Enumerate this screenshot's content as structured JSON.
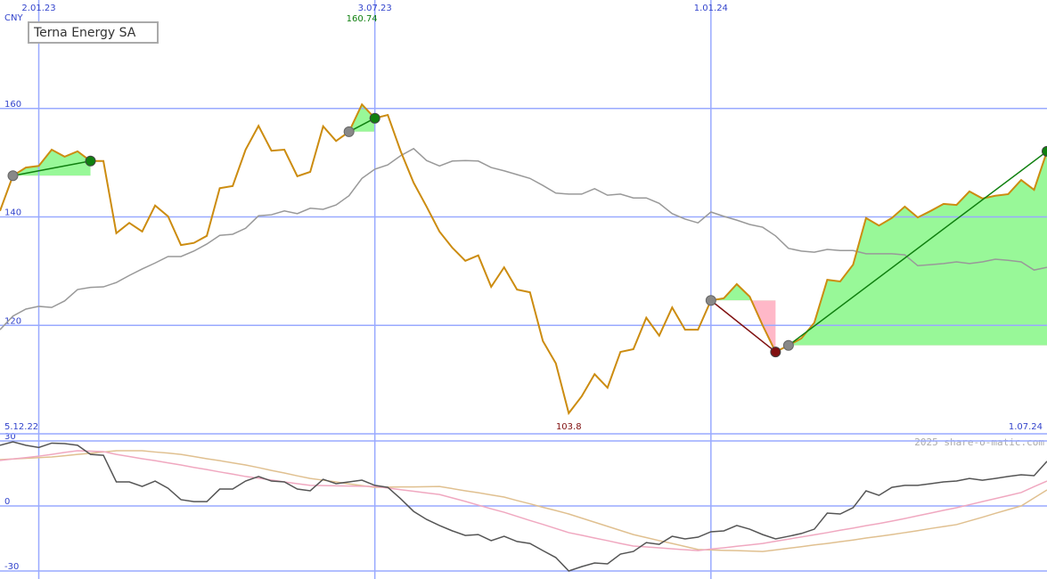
{
  "chart_data": [
    {
      "type": "line",
      "unit": "CNY",
      "xlim": [
        0,
        81
      ],
      "xticks": [
        {
          "value": 0,
          "label": "5.12.22"
        },
        {
          "value": 3,
          "label": "2.01.23"
        },
        {
          "value": 29,
          "label": "3.07.23"
        },
        {
          "value": 55,
          "label": "1.01.24"
        },
        {
          "value": 81,
          "label": "1.07.24"
        }
      ],
      "ylim": [
        100,
        180
      ],
      "yticks": [
        120,
        140,
        160
      ],
      "grid": true,
      "series": [
        {
          "name": "Terna Energy SA",
          "color": "#cc8c10",
          "values": [
            141.1,
            147.6,
            149.1,
            149.4,
            152.4,
            151.1,
            152.1,
            150.3,
            150.3,
            137.0,
            138.9,
            137.3,
            142.1,
            140.1,
            134.8,
            135.2,
            136.5,
            145.3,
            145.7,
            152.4,
            156.8,
            152.2,
            152.4,
            147.5,
            148.3,
            156.7,
            154.0,
            155.7,
            160.74,
            158.2,
            158.8,
            152.1,
            146.3,
            141.9,
            137.3,
            134.3,
            131.9,
            132.9,
            127.1,
            130.7,
            126.6,
            126.1,
            117.1,
            113.0,
            103.8,
            106.9,
            111.0,
            108.5,
            115.1,
            115.6,
            121.4,
            118.1,
            123.3,
            119.2,
            119.2,
            124.6,
            125.0,
            127.6,
            125.3,
            120.0,
            115.1,
            116.3,
            117.6,
            120.5,
            128.4,
            128.1,
            131.2,
            139.8,
            138.4,
            139.8,
            141.9,
            139.9,
            141.1,
            142.4,
            142.2,
            144.7,
            143.4,
            143.9,
            144.2,
            146.8,
            145.0,
            152.1
          ]
        },
        {
          "color": "#999999",
          "values": [
            119.2,
            121.7,
            123.0,
            123.5,
            123.3,
            124.5,
            126.6,
            127.0,
            127.1,
            127.9,
            129.2,
            130.4,
            131.5,
            132.7,
            132.7,
            133.7,
            135.0,
            136.6,
            136.8,
            137.9,
            140.2,
            140.4,
            141.1,
            140.6,
            141.6,
            141.4,
            142.2,
            143.9,
            147.1,
            148.8,
            149.6,
            151.3,
            152.6,
            150.4,
            149.4,
            150.3,
            150.4,
            150.3,
            149.1,
            148.5,
            147.8,
            147.1,
            145.8,
            144.4,
            144.2,
            144.2,
            145.2,
            144.0,
            144.2,
            143.5,
            143.5,
            142.5,
            140.6,
            139.6,
            138.9,
            140.9,
            140.1,
            139.4,
            138.6,
            138.1,
            136.5,
            134.2,
            133.7,
            133.5,
            134.0,
            133.8,
            133.8,
            133.2,
            133.2,
            133.2,
            133.0,
            131.0,
            131.2,
            131.4,
            131.7,
            131.4,
            131.7,
            132.2,
            132.0,
            131.7,
            130.2,
            130.7
          ]
        }
      ],
      "signals": [
        {
          "from": 1,
          "to": 7,
          "color": "#108010"
        },
        {
          "from": 27,
          "to": 29,
          "color": "#108010"
        },
        {
          "from": 55,
          "to": 60,
          "color": "#801010"
        },
        {
          "from": 61,
          "to": 81,
          "color": "#108010"
        }
      ],
      "annotations": [
        {
          "x": 28,
          "value": 160.74,
          "color": "#108010"
        },
        {
          "x": 44,
          "value": 103.8,
          "color": "#801010"
        }
      ],
      "watermark": "2025 share-o-matic.com"
    },
    {
      "type": "line",
      "xlim": [
        0,
        81
      ],
      "ylim": [
        -33.7,
        33.3
      ],
      "yticks": [
        -30,
        0,
        30
      ],
      "grid": true,
      "series": [
        {
          "color": "#555555",
          "values": [
            28,
            29.6,
            28,
            27,
            29,
            28.8,
            28,
            23.8,
            23.4,
            11.1,
            11.1,
            9,
            11.5,
            8.2,
            2.9,
            2,
            2,
            7.8,
            7.8,
            11.5,
            13.6,
            11.5,
            11.1,
            7.8,
            7,
            12.3,
            10.3,
            11.1,
            11.9,
            9.5,
            8.6,
            3.3,
            -2.5,
            -6.2,
            -9,
            -11.5,
            -13.6,
            -13.2,
            -16,
            -14,
            -16.4,
            -17.3,
            -20.6,
            -23.8,
            -30,
            -28,
            -26.3,
            -26.7,
            -22.2,
            -21,
            -16.9,
            -17.7,
            -14,
            -15.2,
            -14.4,
            -11.9,
            -11.5,
            -9,
            -10.7,
            -13.2,
            -15.2,
            -14,
            -12.7,
            -10.7,
            -3.3,
            -3.7,
            -0.8,
            7,
            4.9,
            8.6,
            9.5,
            9.5,
            10.3,
            11.1,
            11.5,
            12.7,
            11.9,
            12.7,
            13.6,
            14.4,
            14,
            20.6
          ]
        },
        {
          "color": "#f0a8c0",
          "values": [
            21.0,
            21.7,
            22.3,
            23.0,
            23.8,
            24.7,
            25.5,
            25.3,
            25.1,
            23.8,
            22.8,
            21.8,
            20.9,
            19.9,
            18.9,
            17.8,
            16.8,
            15.7,
            14.7,
            13.6,
            12.8,
            12.0,
            11.1,
            10.3,
            9.5,
            9.4,
            9.3,
            9.2,
            9.1,
            9.0,
            8.3,
            7.5,
            6.8,
            6.0,
            5.3,
            3.7,
            2.1,
            0.4,
            -1.3,
            -2.9,
            -4.8,
            -6.7,
            -8.5,
            -10.4,
            -12.3,
            -13.5,
            -14.8,
            -16.0,
            -17.3,
            -18.5,
            -18.9,
            -19.3,
            -19.8,
            -20.2,
            -20.6,
            -19.9,
            -19.3,
            -18.6,
            -18.0,
            -17.3,
            -16.3,
            -15.3,
            -14.3,
            -13.3,
            -12.3,
            -11.2,
            -10.2,
            -9.1,
            -8.1,
            -7.0,
            -5.8,
            -4.5,
            -3.3,
            -2.0,
            -0.8,
            0.6,
            2.0,
            3.4,
            4.8,
            6.2,
            8.9,
            11.5
          ]
        },
        {
          "color": "#e0c090",
          "values": [
            21.4,
            21.7,
            22.0,
            22.3,
            22.6,
            23.2,
            23.8,
            24.3,
            24.9,
            25.5,
            25.5,
            25.5,
            24.9,
            24.4,
            23.8,
            22.8,
            21.8,
            20.9,
            19.9,
            18.9,
            17.7,
            16.4,
            15.2,
            13.9,
            12.7,
            11.9,
            11.1,
            10.2,
            9.4,
            8.6,
            8.7,
            8.8,
            8.8,
            8.9,
            9.0,
            8.0,
            7.0,
            6.1,
            5.1,
            4.1,
            2.5,
            1.0,
            -0.6,
            -2.1,
            -3.7,
            -5.6,
            -7.5,
            -9.4,
            -11.3,
            -13.2,
            -14.6,
            -16.0,
            -17.3,
            -18.7,
            -20.1,
            -20.3,
            -20.5,
            -20.6,
            -20.8,
            -21.0,
            -20.3,
            -19.5,
            -18.8,
            -18.0,
            -17.3,
            -16.5,
            -15.7,
            -14.8,
            -14.0,
            -13.2,
            -12.3,
            -11.4,
            -10.4,
            -9.5,
            -8.6,
            -6.9,
            -5.2,
            -3.4,
            -1.7,
            0,
            3.7,
            7.4
          ]
        }
      ]
    }
  ]
}
